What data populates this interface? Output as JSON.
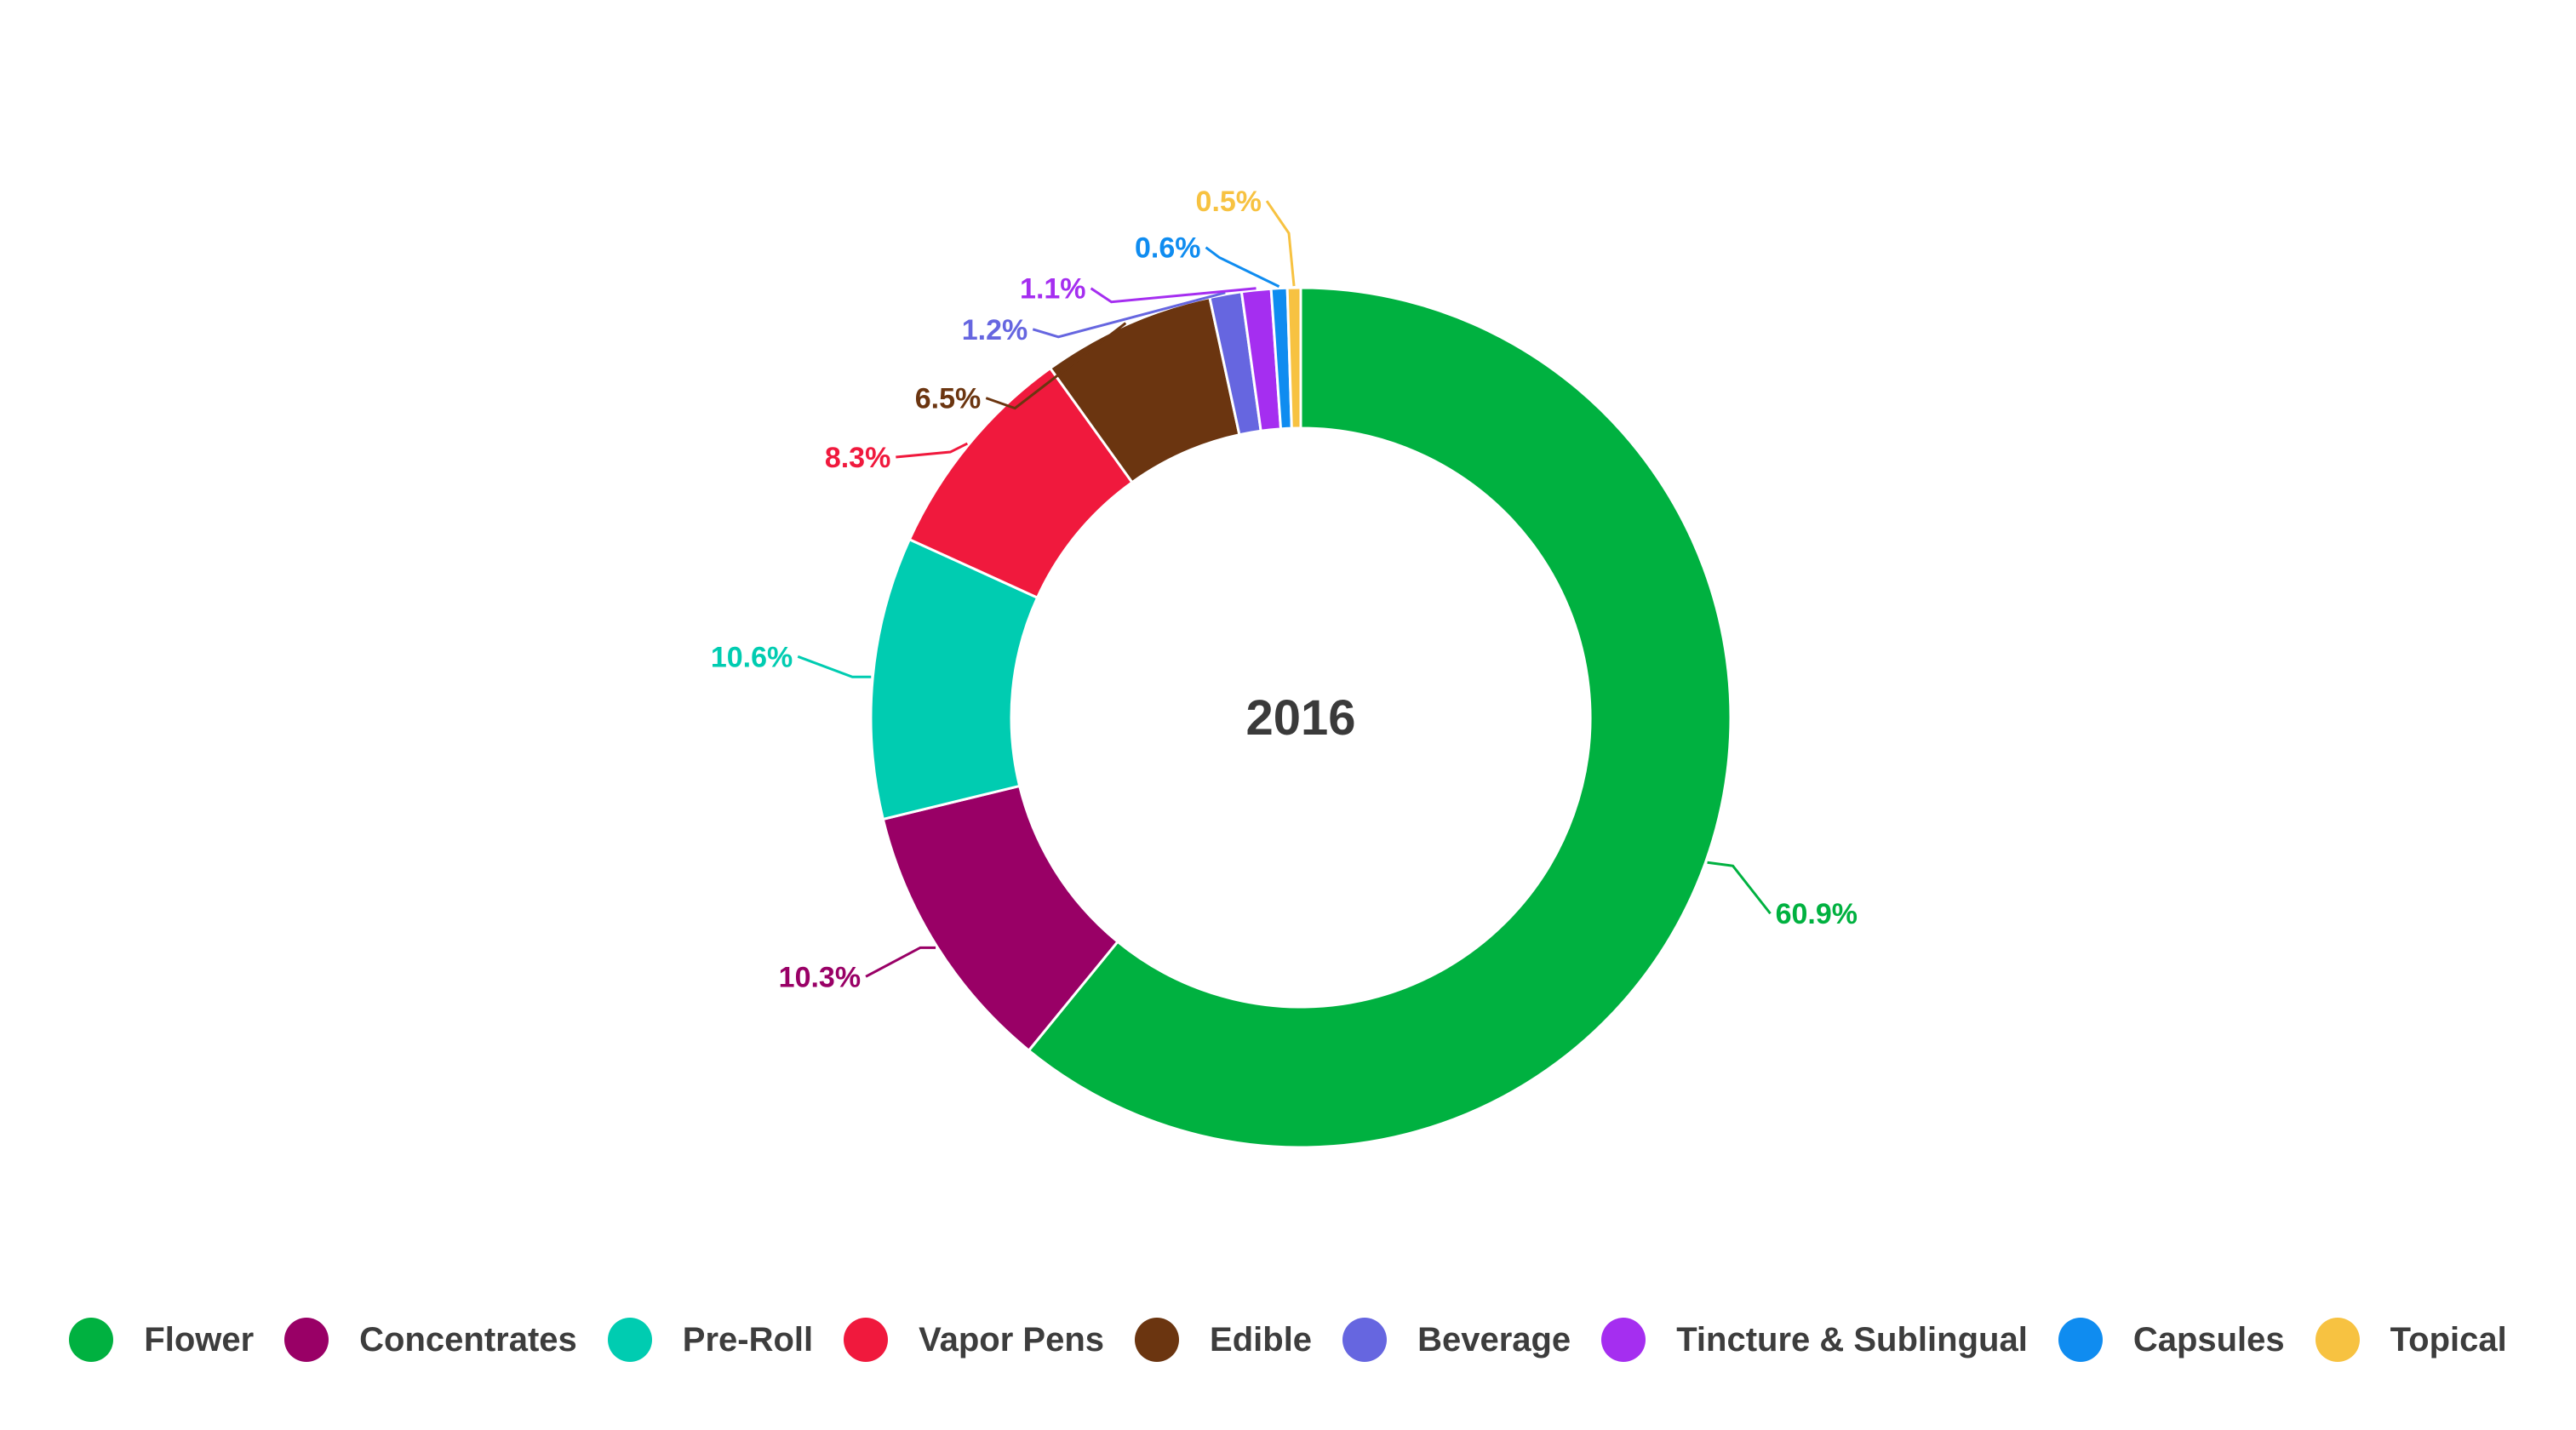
{
  "chart_data": {
    "type": "pie",
    "variant": "donut",
    "center_label": "2016",
    "value_format": "percent",
    "slices": [
      {
        "label": "Flower",
        "value": 60.9,
        "display": "60.9%",
        "color": "#00b140"
      },
      {
        "label": "Concentrates",
        "value": 10.3,
        "display": "10.3%",
        "color": "#990066"
      },
      {
        "label": "Pre-Roll",
        "value": 10.6,
        "display": "10.6%",
        "color": "#00ccb1"
      },
      {
        "label": "Vapor Pens",
        "value": 8.3,
        "display": "8.3%",
        "color": "#f0193d"
      },
      {
        "label": "Edible",
        "value": 6.5,
        "display": "6.5%",
        "color": "#6b3510"
      },
      {
        "label": "Beverage",
        "value": 1.2,
        "display": "1.2%",
        "color": "#6666e0"
      },
      {
        "label": "Tincture & Sublingual",
        "value": 1.1,
        "display": "1.1%",
        "color": "#a52ef0"
      },
      {
        "label": "Capsules",
        "value": 0.6,
        "display": "0.6%",
        "color": "#0f8cf0"
      },
      {
        "label": "Topical",
        "value": 0.5,
        "display": "0.5%",
        "color": "#f7c241"
      }
    ],
    "legend": {
      "position": "bottom"
    }
  }
}
